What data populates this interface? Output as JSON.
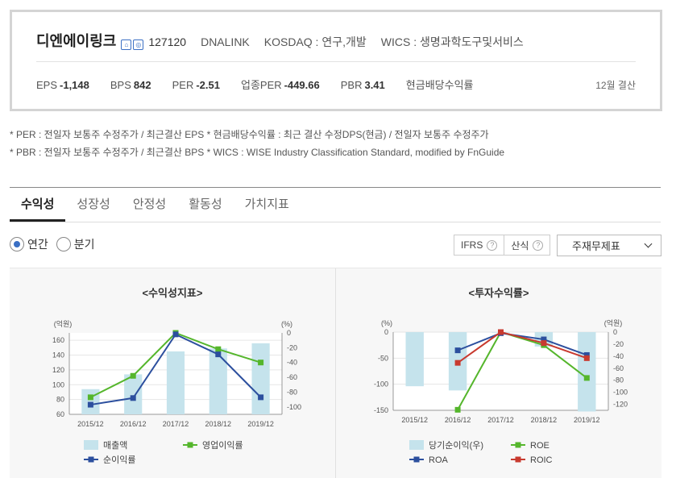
{
  "header": {
    "company": "디엔에이링크",
    "code": "127120",
    "eng_name": "DNALINK",
    "market": "KOSDAQ : 연구,개발",
    "wics": "WICS : 생명과학도구및서비스",
    "settlement": "12월 결산",
    "metrics": [
      {
        "label": "EPS",
        "value": "-1,148"
      },
      {
        "label": "BPS",
        "value": "842"
      },
      {
        "label": "PER",
        "value": "-2.51"
      },
      {
        "label": "업종PER",
        "value": "-449.66"
      },
      {
        "label": "PBR",
        "value": "3.41"
      },
      {
        "label": "현금배당수익률",
        "value": ""
      }
    ]
  },
  "notes": {
    "line1": "* PER : 전일자 보통주 수정주가 / 최근결산 EPS * 현금배당수익률 : 최근 결산 수정DPS(현금) / 전일자 보통주 수정주가",
    "line2": "* PBR : 전일자 보통주 수정주가 / 최근결산 BPS * WICS : WISE Industry Classification Standard, modified by FnGuide"
  },
  "tabs": [
    "수익성",
    "성장성",
    "안정성",
    "활동성",
    "가치지표"
  ],
  "period": {
    "annual": "연간",
    "quarter": "분기"
  },
  "controls": {
    "ifrs": "IFRS",
    "method": "산식",
    "select": "주재무제표",
    "qmark": "?"
  },
  "icons": {
    "company_icons": [
      "home-icon",
      "report-icon"
    ]
  },
  "colors": {
    "bar": "#c5e3ec",
    "green": "#55b62c",
    "blue": "#2c4f9e",
    "red": "#c83a2f"
  },
  "chart_data": [
    {
      "type": "bar",
      "title": "<수익성지표>",
      "categories": [
        "2015/12",
        "2016/12",
        "2017/12",
        "2018/12",
        "2019/12"
      ],
      "left_unit": "(억원)",
      "right_unit": "(%)",
      "ylim_left": [
        60,
        170
      ],
      "left_ticks": [
        60,
        80,
        100,
        120,
        140,
        160
      ],
      "ylim_right": [
        -110,
        0
      ],
      "right_ticks": [
        0,
        -20,
        -40,
        -60,
        -80,
        -100
      ],
      "series": [
        {
          "name": "매출액",
          "kind": "bar",
          "axis": "left",
          "values": [
            94,
            114,
            145,
            149,
            156
          ]
        },
        {
          "name": "영업이익률",
          "kind": "line",
          "axis": "right",
          "color": "green",
          "values": [
            -87,
            -58,
            0,
            -22,
            -40
          ]
        },
        {
          "name": "순이익률",
          "kind": "line",
          "axis": "right",
          "color": "blue",
          "values": [
            -97,
            -88,
            -2,
            -29,
            -87
          ]
        }
      ]
    },
    {
      "type": "bar",
      "title": "<투자수익률>",
      "categories": [
        "2015/12",
        "2016/12",
        "2017/12",
        "2018/12",
        "2019/12"
      ],
      "left_unit": "(%)",
      "right_unit": "(억원)",
      "ylim_left": [
        -150,
        0
      ],
      "left_ticks": [
        0,
        -50,
        -100,
        -150
      ],
      "ylim_right": [
        -130,
        0
      ],
      "right_ticks": [
        0,
        -20,
        -40,
        -60,
        -80,
        -100,
        -120
      ],
      "series": [
        {
          "name": "당기순이익(우)",
          "kind": "bar",
          "axis": "right",
          "values": [
            -90,
            -97,
            -1,
            -24,
            -132
          ]
        },
        {
          "name": "ROE",
          "kind": "line",
          "axis": "left",
          "color": "green",
          "values": [
            null,
            -149,
            0,
            -25,
            -88
          ]
        },
        {
          "name": "ROA",
          "kind": "line",
          "axis": "left",
          "color": "blue",
          "values": [
            null,
            -35,
            -2,
            -14,
            -44
          ]
        },
        {
          "name": "ROIC",
          "kind": "line",
          "axis": "left",
          "color": "red",
          "values": [
            null,
            -59,
            0,
            -21,
            -50
          ]
        }
      ]
    }
  ]
}
